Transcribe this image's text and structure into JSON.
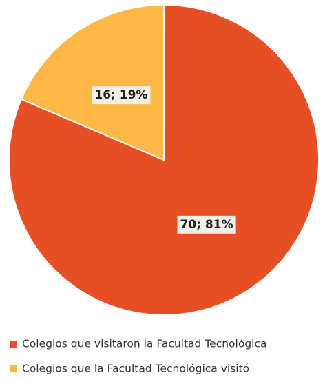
{
  "chart_data": {
    "type": "pie",
    "categories": [
      "Colegios que visitaron la Facultad Tecnológica",
      "Colegios que la Facultad Tecnológica visitó"
    ],
    "values": [
      70,
      16
    ],
    "value_labels": [
      "70; 81%",
      "16; 19%"
    ],
    "colors": [
      "#E64E23",
      "#FDB845"
    ]
  }
}
